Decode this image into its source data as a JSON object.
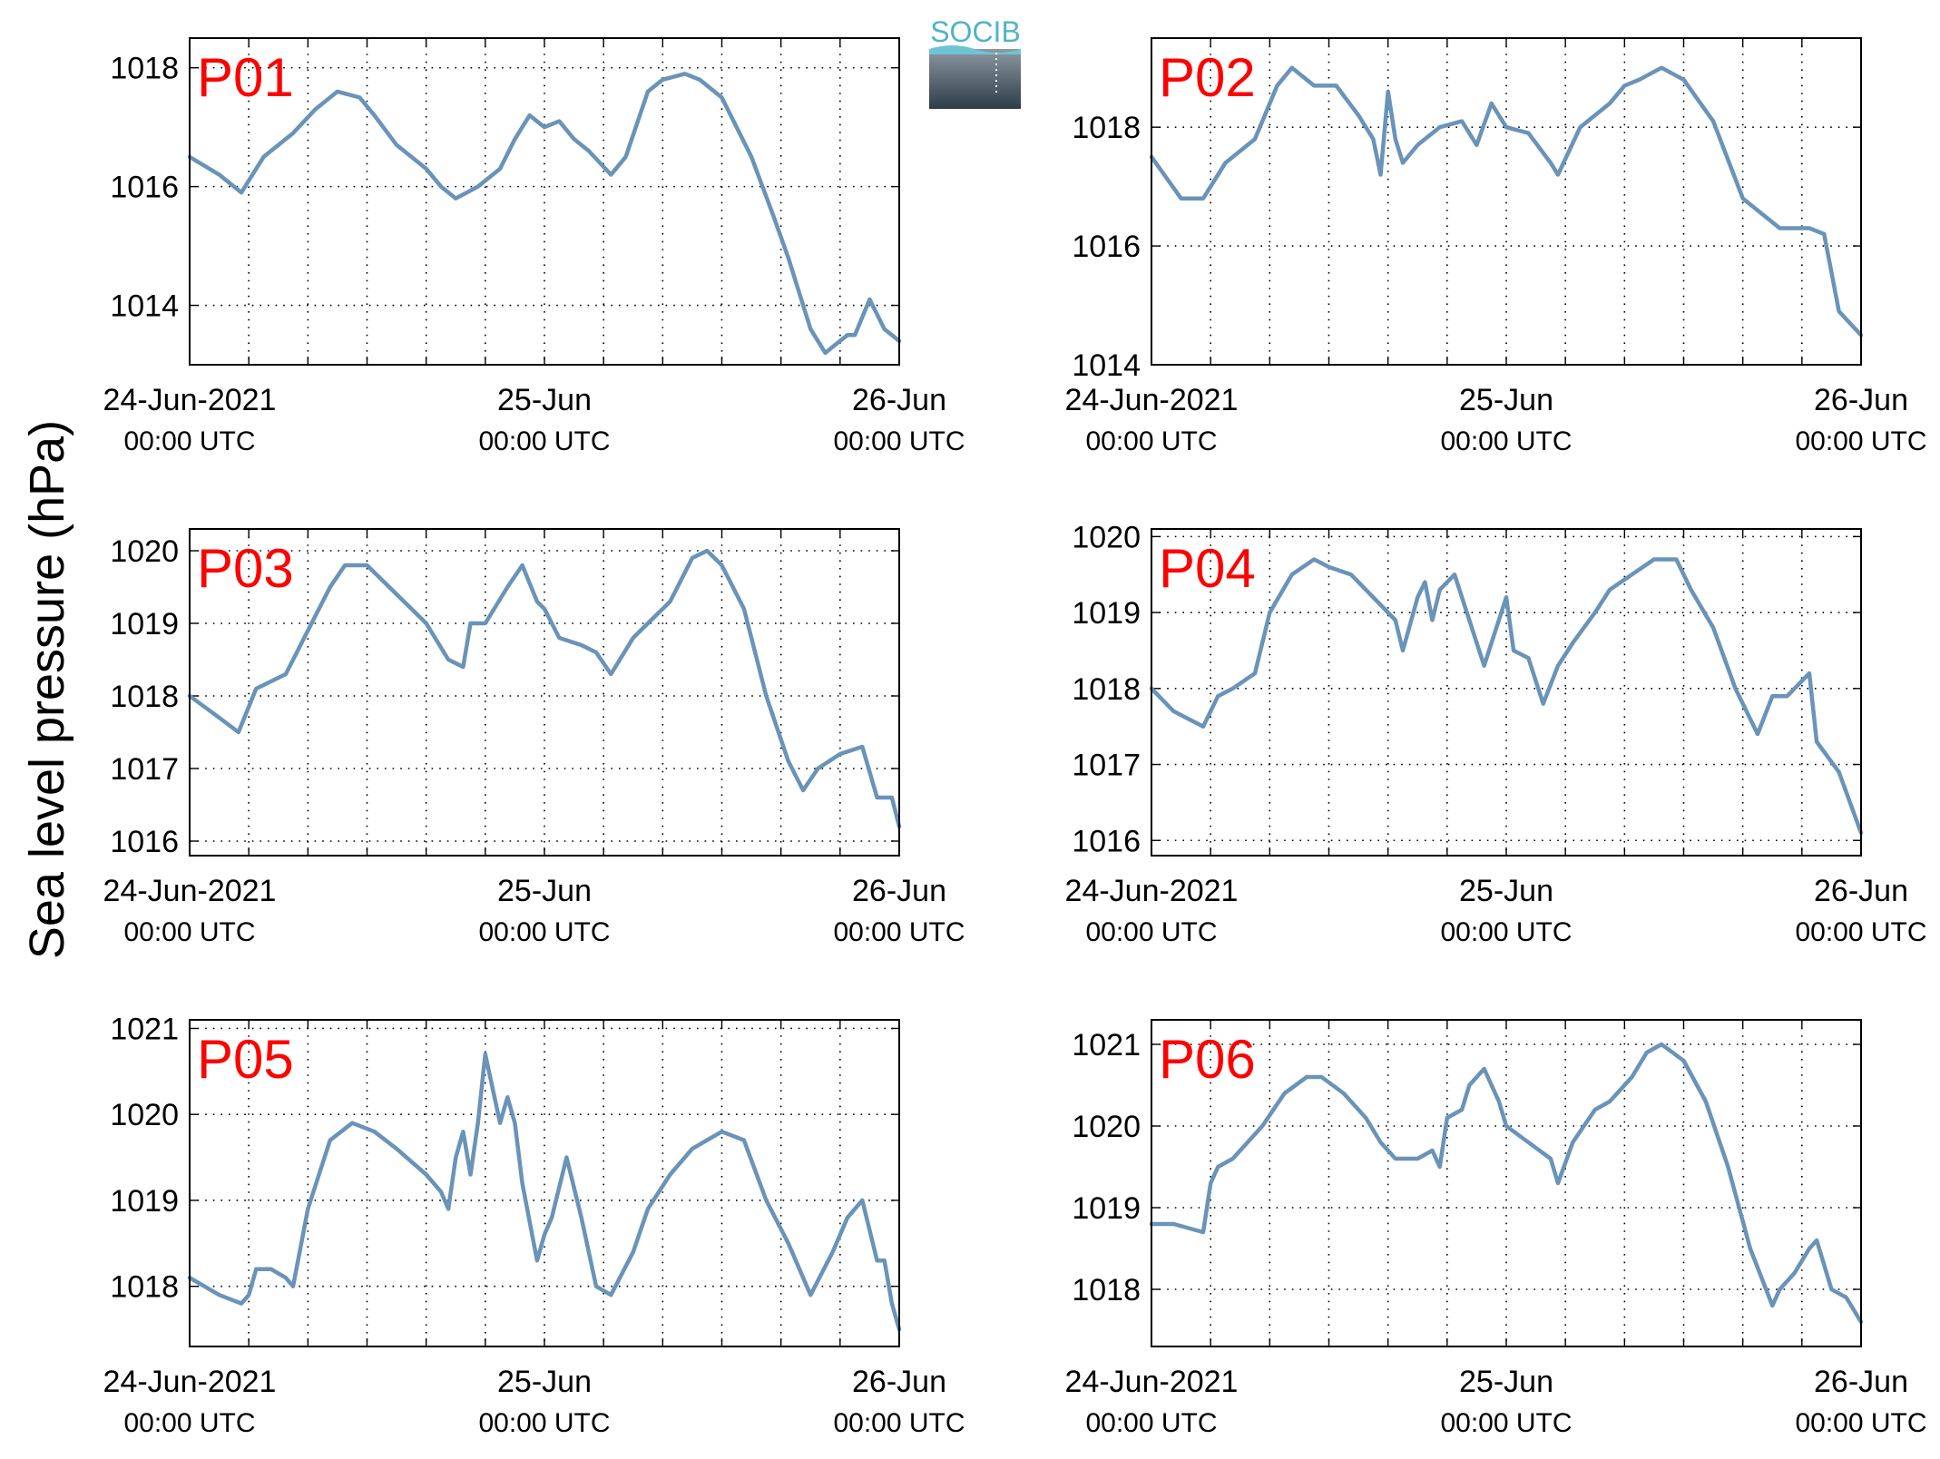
{
  "ylabel": "Sea level pressure (hPa)",
  "logo_text": "SOCIB",
  "colors": {
    "line": "#6a93b8",
    "panel_label": "#ff0000",
    "logo_text": "#4fb3c9",
    "logo_top": "#8d98a1",
    "logo_bottom": "#2e3d48"
  },
  "chart_data": [
    {
      "type": "line",
      "label": "P01",
      "ylim": [
        1013,
        1018.5
      ],
      "yticks": [
        1014,
        1016,
        1018
      ],
      "xlim": [
        0,
        48
      ],
      "grid": "dotted",
      "xticks": [
        {
          "x": 0,
          "label": "24-Jun-2021",
          "sub": "00:00 UTC"
        },
        {
          "x": 24,
          "label": "25-Jun",
          "sub": "00:00 UTC"
        },
        {
          "x": 48,
          "label": "26-Jun",
          "sub": "00:00 UTC"
        }
      ],
      "x": [
        0,
        2,
        3.5,
        5,
        7,
        8.5,
        10,
        11.5,
        12.5,
        14,
        16,
        17,
        18,
        19.5,
        21,
        22,
        23,
        24,
        25,
        26,
        27,
        28.5,
        29.5,
        31,
        32,
        33.5,
        34.5,
        36,
        38,
        39.5,
        40.5,
        42,
        43,
        44,
        44.5,
        45,
        46,
        47,
        48
      ],
      "y": [
        1016.5,
        1016.2,
        1015.9,
        1016.5,
        1016.9,
        1017.3,
        1017.6,
        1017.5,
        1017.2,
        1016.7,
        1016.3,
        1016.0,
        1015.8,
        1016.0,
        1016.3,
        1016.8,
        1017.2,
        1017.0,
        1017.1,
        1016.8,
        1016.6,
        1016.2,
        1016.5,
        1017.6,
        1017.8,
        1017.9,
        1017.8,
        1017.5,
        1016.5,
        1015.5,
        1014.8,
        1013.6,
        1013.2,
        1013.4,
        1013.5,
        1013.5,
        1014.1,
        1013.6,
        1013.4
      ]
    },
    {
      "type": "line",
      "label": "P02",
      "ylim": [
        1014,
        1019.5
      ],
      "yticks": [
        1014,
        1016,
        1018
      ],
      "xlim": [
        0,
        48
      ],
      "grid": "dotted",
      "xticks": [
        {
          "x": 0,
          "label": "24-Jun-2021",
          "sub": "00:00 UTC"
        },
        {
          "x": 24,
          "label": "25-Jun",
          "sub": "00:00 UTC"
        },
        {
          "x": 48,
          "label": "26-Jun",
          "sub": "00:00 UTC"
        }
      ],
      "x": [
        0,
        2,
        3.5,
        5,
        7,
        8.5,
        9.5,
        11,
        12.5,
        14,
        15,
        15.5,
        16,
        16.5,
        17,
        18,
        19.5,
        21,
        22,
        23,
        24,
        25.5,
        27,
        27.5,
        29,
        31,
        32,
        33,
        34.5,
        36,
        38,
        40,
        41.5,
        42.5,
        43,
        44.5,
        45.5,
        46.5,
        48
      ],
      "y": [
        1017.5,
        1016.8,
        1016.8,
        1017.4,
        1017.8,
        1018.7,
        1019.0,
        1018.7,
        1018.7,
        1018.2,
        1017.8,
        1017.2,
        1018.6,
        1017.8,
        1017.4,
        1017.7,
        1018.0,
        1018.1,
        1017.7,
        1018.4,
        1018.0,
        1017.9,
        1017.4,
        1017.2,
        1018.0,
        1018.4,
        1018.7,
        1018.8,
        1019.0,
        1018.8,
        1018.1,
        1016.8,
        1016.5,
        1016.3,
        1016.3,
        1016.3,
        1016.2,
        1014.9,
        1014.5
      ]
    },
    {
      "type": "line",
      "label": "P03",
      "ylim": [
        1015.8,
        1020.3
      ],
      "yticks": [
        1016,
        1017,
        1018,
        1019,
        1020
      ],
      "xlim": [
        0,
        48
      ],
      "grid": "dotted",
      "xticks": [
        {
          "x": 0,
          "label": "24-Jun-2021",
          "sub": "00:00 UTC"
        },
        {
          "x": 24,
          "label": "25-Jun",
          "sub": "00:00 UTC"
        },
        {
          "x": 48,
          "label": "26-Jun",
          "sub": "00:00 UTC"
        }
      ],
      "x": [
        0,
        2,
        3.3,
        4.5,
        5.5,
        6.5,
        8,
        9.5,
        10.5,
        12,
        14,
        16,
        17.5,
        18.5,
        19,
        20,
        21.5,
        22.5,
        23.5,
        24,
        25,
        26.5,
        27.5,
        28.5,
        30,
        31,
        32.5,
        34,
        35,
        36,
        37.5,
        39,
        40.5,
        41.5,
        42.5,
        44,
        45.5,
        46.5,
        47.5,
        48
      ],
      "y": [
        1018.0,
        1017.7,
        1017.5,
        1018.1,
        1018.2,
        1018.3,
        1018.9,
        1019.5,
        1019.8,
        1019.8,
        1019.4,
        1019.0,
        1018.5,
        1018.4,
        1019.0,
        1019.0,
        1019.5,
        1019.8,
        1019.3,
        1019.2,
        1018.8,
        1018.7,
        1018.6,
        1018.3,
        1018.8,
        1019.0,
        1019.3,
        1019.9,
        1020.0,
        1019.8,
        1019.2,
        1018.0,
        1017.1,
        1016.7,
        1017.0,
        1017.2,
        1017.3,
        1016.6,
        1016.6,
        1016.2
      ]
    },
    {
      "type": "line",
      "label": "P04",
      "ylim": [
        1015.8,
        1020.1
      ],
      "yticks": [
        1016,
        1017,
        1018,
        1019,
        1020
      ],
      "xlim": [
        0,
        48
      ],
      "grid": "dotted",
      "xticks": [
        {
          "x": 0,
          "label": "24-Jun-2021",
          "sub": "00:00 UTC"
        },
        {
          "x": 24,
          "label": "25-Jun",
          "sub": "00:00 UTC"
        },
        {
          "x": 48,
          "label": "26-Jun",
          "sub": "00:00 UTC"
        }
      ],
      "x": [
        0,
        1.5,
        3.5,
        4.5,
        5.5,
        7,
        8,
        9.5,
        11,
        12,
        13.5,
        15,
        16.5,
        17,
        18,
        18.5,
        19,
        19.5,
        20.5,
        21.5,
        22.5,
        23,
        24,
        24.5,
        25.5,
        26.5,
        27.5,
        28.5,
        30,
        31,
        32.5,
        34,
        35.5,
        36.5,
        38,
        39.5,
        41,
        42,
        43,
        44.5,
        45,
        46.5,
        48
      ],
      "y": [
        1018.0,
        1017.7,
        1017.5,
        1017.9,
        1018.0,
        1018.2,
        1019.0,
        1019.5,
        1019.7,
        1019.6,
        1019.5,
        1019.2,
        1018.9,
        1018.5,
        1019.2,
        1019.4,
        1018.9,
        1019.3,
        1019.5,
        1018.9,
        1018.3,
        1018.6,
        1019.2,
        1018.5,
        1018.4,
        1017.8,
        1018.3,
        1018.6,
        1019.0,
        1019.3,
        1019.5,
        1019.7,
        1019.7,
        1019.3,
        1018.8,
        1018.0,
        1017.4,
        1017.9,
        1017.9,
        1018.2,
        1017.3,
        1016.9,
        1016.1
      ]
    },
    {
      "type": "line",
      "label": "P05",
      "ylim": [
        1017.3,
        1021.1
      ],
      "yticks": [
        1018,
        1019,
        1020,
        1021
      ],
      "xlim": [
        0,
        48
      ],
      "grid": "dotted",
      "xticks": [
        {
          "x": 0,
          "label": "24-Jun-2021",
          "sub": "00:00 UTC"
        },
        {
          "x": 24,
          "label": "25-Jun",
          "sub": "00:00 UTC"
        },
        {
          "x": 48,
          "label": "26-Jun",
          "sub": "00:00 UTC"
        }
      ],
      "x": [
        0,
        2,
        3.5,
        4,
        4.5,
        5.5,
        6.5,
        7,
        8,
        9.5,
        11,
        12.5,
        14,
        16,
        17,
        17.5,
        18,
        18.5,
        19,
        19.5,
        20,
        21,
        21.5,
        22,
        22.5,
        23.5,
        24,
        24.5,
        25.5,
        26.5,
        27.5,
        28.5,
        30,
        31,
        32.5,
        34,
        36,
        37.5,
        39,
        40.5,
        42,
        43.5,
        44.5,
        45.5,
        46.5,
        47,
        47.5,
        48
      ],
      "y": [
        1018.1,
        1017.9,
        1017.8,
        1017.9,
        1018.2,
        1018.2,
        1018.1,
        1018.0,
        1018.9,
        1019.7,
        1019.9,
        1019.8,
        1019.6,
        1019.3,
        1019.1,
        1018.9,
        1019.5,
        1019.8,
        1019.3,
        1019.9,
        1020.7,
        1019.9,
        1020.2,
        1019.9,
        1019.2,
        1018.3,
        1018.6,
        1018.8,
        1019.5,
        1018.8,
        1018.0,
        1017.9,
        1018.4,
        1018.9,
        1019.3,
        1019.6,
        1019.8,
        1019.7,
        1019.0,
        1018.5,
        1017.9,
        1018.4,
        1018.8,
        1019.0,
        1018.3,
        1018.3,
        1017.8,
        1017.5
      ]
    },
    {
      "type": "line",
      "label": "P06",
      "ylim": [
        1017.3,
        1021.3
      ],
      "yticks": [
        1018,
        1019,
        1020,
        1021
      ],
      "xlim": [
        0,
        48
      ],
      "grid": "dotted",
      "xticks": [
        {
          "x": 0,
          "label": "24-Jun-2021",
          "sub": "00:00 UTC"
        },
        {
          "x": 24,
          "label": "25-Jun",
          "sub": "00:00 UTC"
        },
        {
          "x": 48,
          "label": "26-Jun",
          "sub": "00:00 UTC"
        }
      ],
      "x": [
        0,
        1.5,
        3.5,
        4,
        4.5,
        5.5,
        6.5,
        7.5,
        9,
        10.5,
        11.5,
        13,
        14.5,
        15.5,
        16.5,
        18,
        19,
        19.5,
        20,
        21,
        21.5,
        22.5,
        23.5,
        24,
        25.5,
        27,
        27.5,
        28.5,
        30,
        31,
        32.5,
        33.5,
        34.5,
        36,
        37.5,
        39,
        40.5,
        42,
        42.5,
        43.5,
        44.5,
        45,
        46,
        47,
        48
      ],
      "y": [
        1018.8,
        1018.8,
        1018.7,
        1019.3,
        1019.5,
        1019.6,
        1019.8,
        1020.0,
        1020.4,
        1020.6,
        1020.6,
        1020.4,
        1020.1,
        1019.8,
        1019.6,
        1019.6,
        1019.7,
        1019.5,
        1020.1,
        1020.2,
        1020.5,
        1020.7,
        1020.3,
        1020.0,
        1019.8,
        1019.6,
        1019.3,
        1019.8,
        1020.2,
        1020.3,
        1020.6,
        1020.9,
        1021.0,
        1020.8,
        1020.3,
        1019.5,
        1018.5,
        1017.8,
        1018.0,
        1018.2,
        1018.5,
        1018.6,
        1018.0,
        1017.9,
        1017.6
      ]
    }
  ]
}
